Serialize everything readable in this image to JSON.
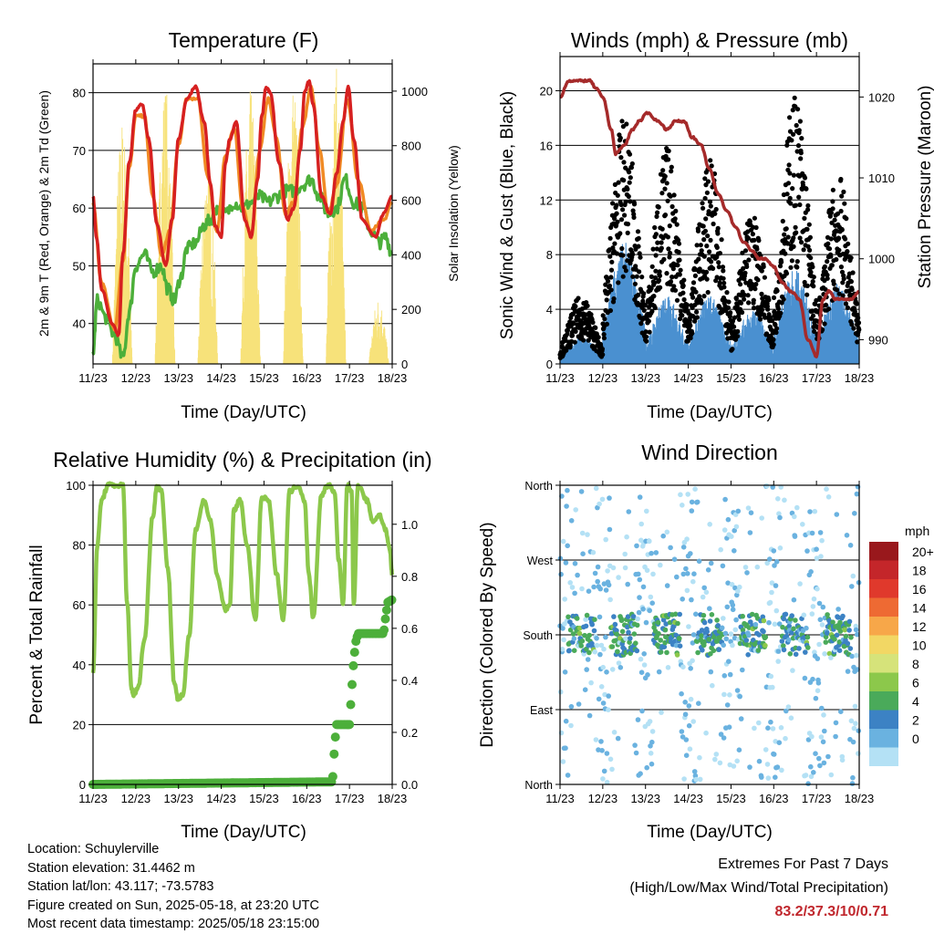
{
  "chart_data": [
    {
      "type": "line",
      "title": "Temperature (F)",
      "xlabel": "Time (Day/UTC)",
      "ylabel": "2m & 9m T (Red, Orange) & 2m Td (Green)",
      "ylabel_right": "Solar Insolation (Yellow)",
      "x_ticks": [
        "11/23",
        "12/23",
        "13/23",
        "14/23",
        "15/23",
        "16/23",
        "17/23",
        "18/23"
      ],
      "ylim": [
        33,
        85
      ],
      "y_ticks": [
        40,
        50,
        60,
        70,
        80
      ],
      "ylim_right": [
        0,
        1100
      ],
      "y_ticks_right": [
        0,
        200,
        400,
        600,
        800,
        1000
      ],
      "grid": true,
      "series": [
        {
          "name": "2m T",
          "color": "#d62020",
          "x": [
            0,
            0.08,
            0.2,
            0.45,
            0.6,
            0.7,
            0.85,
            1.0,
            1.15,
            1.3,
            1.5,
            1.7,
            1.85,
            2.0,
            2.2,
            2.4,
            2.6,
            2.75,
            2.85,
            3.0,
            3.1,
            3.2,
            3.35,
            3.55,
            3.7,
            3.85,
            3.95,
            4.05,
            4.15,
            4.35,
            4.55,
            4.7,
            4.85,
            4.95,
            5.05,
            5.15,
            5.35,
            5.55,
            5.7,
            5.85,
            5.97,
            6.1,
            6.3,
            6.6,
            6.8,
            7.0
          ],
          "y": [
            62,
            55,
            46,
            40,
            38,
            52,
            68,
            77,
            78,
            72,
            57,
            50,
            58,
            72,
            79,
            81,
            75,
            64,
            57,
            55,
            68,
            72,
            75,
            58,
            55,
            65,
            76,
            81,
            80,
            68,
            58,
            60,
            70,
            80,
            82,
            78,
            62,
            59,
            66,
            75,
            81,
            72,
            58,
            55,
            59,
            62
          ]
        },
        {
          "name": "9m T",
          "color": "#f08a24",
          "x": [
            0,
            0.2,
            0.5,
            0.7,
            0.85,
            1.0,
            1.2,
            1.4,
            1.6,
            1.8,
            2.0,
            2.2,
            2.45,
            2.7,
            2.9,
            3.1,
            3.3,
            3.5,
            3.7,
            3.9,
            4.1,
            4.3,
            4.5,
            4.7,
            4.9,
            5.1,
            5.3,
            5.5,
            5.7,
            5.95,
            6.2,
            6.5,
            6.8,
            7.0
          ],
          "y": [
            61,
            47,
            39,
            51,
            67,
            76,
            76,
            62,
            52,
            56,
            71,
            79,
            79,
            65,
            56,
            69,
            74,
            60,
            55,
            70,
            79,
            72,
            59,
            61,
            74,
            81,
            70,
            59,
            64,
            79,
            65,
            56,
            58,
            61
          ]
        },
        {
          "name": "2m Td",
          "color": "#4caf3a",
          "x": [
            0,
            0.1,
            0.3,
            0.5,
            0.7,
            0.85,
            1.0,
            1.2,
            1.4,
            1.6,
            1.75,
            1.9,
            2.05,
            2.2,
            2.4,
            2.6,
            2.75,
            2.9,
            3.1,
            3.3,
            3.5,
            3.7,
            3.9,
            4.1,
            4.3,
            4.5,
            4.7,
            4.9,
            5.1,
            5.3,
            5.5,
            5.7,
            5.9,
            6.1,
            6.3,
            6.5,
            6.7,
            6.85,
            7.0
          ],
          "y": [
            35,
            44,
            41,
            38,
            34,
            42,
            50,
            52,
            49,
            50,
            46,
            44,
            48,
            53,
            54,
            57,
            58,
            60,
            59,
            61,
            60,
            61,
            62,
            61,
            62,
            63,
            63,
            64,
            65,
            62,
            59,
            60,
            65,
            61,
            60,
            56,
            54,
            55,
            52
          ]
        },
        {
          "name": "Solar Insolation",
          "color": "#f7e27a",
          "axis": "right",
          "daily_peaks": [
            910,
            1050,
            790,
            1010,
            1060,
            1090,
            250
          ]
        }
      ]
    },
    {
      "type": "scatter",
      "title": "Winds (mph) & Pressure (mb)",
      "xlabel": "Time (Day/UTC)",
      "ylabel": "Sonic Wind & Gust (Blue, Black)",
      "ylabel_right": "Station Pressure (Maroon)",
      "x_ticks": [
        "11/23",
        "12/23",
        "13/23",
        "14/23",
        "15/23",
        "16/23",
        "17/23",
        "18/23"
      ],
      "ylim": [
        0,
        22.5
      ],
      "y_ticks": [
        0,
        4,
        8,
        12,
        16,
        20
      ],
      "ylim_right": [
        987,
        1025
      ],
      "y_ticks_right": [
        990,
        1000,
        1010,
        1020
      ],
      "grid": true,
      "series": [
        {
          "name": "Sonic Wind",
          "color": "#4a90d0",
          "daily_peaks": [
            2,
            9,
            5,
            5,
            4,
            7,
            6,
            4
          ]
        },
        {
          "name": "Gust",
          "color": "#000000",
          "daily_peaks": [
            5,
            18,
            16,
            15,
            11,
            20,
            14,
            15
          ]
        },
        {
          "name": "Station Pressure",
          "color": "#a52a2a",
          "axis": "right",
          "x": [
            0,
            0.2,
            0.4,
            0.55,
            0.7,
            0.85,
            1.0,
            1.2,
            1.3,
            1.5,
            1.7,
            1.85,
            2.05,
            2.3,
            2.5,
            2.7,
            2.9,
            3.1,
            3.3,
            3.5,
            3.7,
            3.9,
            4.1,
            4.3,
            4.5,
            4.65,
            4.8,
            5.0,
            5.2,
            5.4,
            5.6,
            5.8,
            6.0,
            6.15,
            6.3,
            6.45,
            6.6,
            6.8,
            7.0
          ],
          "y": [
            1020,
            1022,
            1022,
            1022,
            1022,
            1021,
            1020,
            1016,
            1013,
            1014,
            1016,
            1017,
            1018,
            1017,
            1016,
            1017,
            1017,
            1015,
            1014,
            1011,
            1008,
            1006,
            1004,
            1002,
            1001,
            1000,
            1000,
            999,
            997,
            996,
            995,
            990,
            988,
            995,
            996,
            995,
            995,
            995,
            996
          ]
        }
      ]
    },
    {
      "type": "line",
      "title": "Relative Humidity (%) & Precipitation (in)",
      "xlabel": "Time (Day/UTC)",
      "ylabel": "Percent & Total Rainfall",
      "x_ticks": [
        "11/23",
        "12/23",
        "13/23",
        "14/23",
        "15/23",
        "16/23",
        "17/23",
        "18/23"
      ],
      "ylim": [
        0,
        100
      ],
      "y_ticks": [
        0,
        20,
        40,
        60,
        80,
        100
      ],
      "ylim_right": [
        0,
        1.15
      ],
      "y_ticks_right": [
        "0.0",
        "0.2",
        "0.4",
        "0.6",
        "0.8",
        "1.0"
      ],
      "grid": true,
      "series": [
        {
          "name": "Relative Humidity",
          "color": "#8cc84b",
          "x": [
            0,
            0.1,
            0.2,
            0.35,
            0.5,
            0.7,
            0.8,
            0.9,
            0.95,
            1.05,
            1.2,
            1.4,
            1.5,
            1.6,
            1.75,
            1.9,
            2.0,
            2.1,
            2.25,
            2.4,
            2.6,
            2.75,
            2.9,
            3.1,
            3.2,
            3.3,
            3.45,
            3.6,
            3.8,
            3.95,
            4.1,
            4.3,
            4.45,
            4.6,
            4.8,
            4.95,
            5.05,
            5.15,
            5.35,
            5.5,
            5.65,
            5.75,
            5.85,
            5.95,
            6.05,
            6.1,
            6.2,
            6.4,
            6.55,
            6.7,
            6.85,
            6.95,
            7.0
          ],
          "y": [
            37,
            80,
            95,
            100,
            100,
            100,
            60,
            32,
            30,
            32,
            48,
            90,
            100,
            98,
            72,
            34,
            28,
            30,
            50,
            85,
            95,
            88,
            70,
            58,
            60,
            92,
            95,
            80,
            55,
            96,
            95,
            70,
            55,
            98,
            100,
            95,
            70,
            56,
            97,
            100,
            98,
            75,
            60,
            100,
            98,
            60,
            100,
            95,
            88,
            90,
            85,
            78,
            70
          ]
        },
        {
          "name": "Total Rainfall",
          "color": "#4caf3a",
          "axis": "right",
          "x": [
            0,
            5.6,
            5.62,
            5.65,
            5.7,
            5.75,
            6.0,
            6.02,
            6.05,
            6.1,
            6.15,
            6.2,
            6.8,
            6.85,
            6.9,
            7.0
          ],
          "y": [
            0.0,
            0.01,
            0.05,
            0.15,
            0.23,
            0.23,
            0.23,
            0.28,
            0.36,
            0.48,
            0.55,
            0.58,
            0.58,
            0.65,
            0.7,
            0.71
          ]
        }
      ]
    },
    {
      "type": "scatter",
      "title": "Wind Direction",
      "xlabel": "Time (Day/UTC)",
      "ylabel": "Direction (Colored By Speed)",
      "x_ticks": [
        "11/23",
        "12/23",
        "13/23",
        "14/23",
        "15/23",
        "16/23",
        "17/23",
        "18/23"
      ],
      "ylim": [
        0,
        360
      ],
      "y_ticks": [
        "North",
        "East",
        "South",
        "West",
        "North"
      ],
      "grid": true,
      "legend": {
        "title": "mph",
        "placement": "right",
        "labels": [
          "20+",
          "18",
          "16",
          "14",
          "12",
          "10",
          "8",
          "6",
          "4",
          "2",
          "0"
        ],
        "colors": [
          "#99181c",
          "#c4262a",
          "#e0392c",
          "#ee6a33",
          "#f7a749",
          "#f2d764",
          "#d6e37a",
          "#8cc84b",
          "#4aaa5a",
          "#3c82c4",
          "#6ab2e0",
          "#b4e1f5"
        ]
      },
      "daily_mean_direction_deg": [
        180,
        180,
        180,
        180,
        180,
        180,
        180
      ],
      "speed_range_mph": [
        0,
        9
      ]
    }
  ],
  "footer": {
    "location": "Location: Schuylerville",
    "elevation": "Station elevation: 31.4462 m",
    "latlon": "Station lat/lon: 43.117; -73.5783",
    "created": "Figure created on Sun, 2025-05-18, at 23:20 UTC",
    "recent": "Most recent data timestamp: 2025/05/18 23:15:00",
    "extremes_title": "Extremes For Past 7 Days",
    "extremes_legend": "(High/Low/Max Wind/Total Precipitation)",
    "extremes_values": "83.2/37.3/10/0.71"
  }
}
